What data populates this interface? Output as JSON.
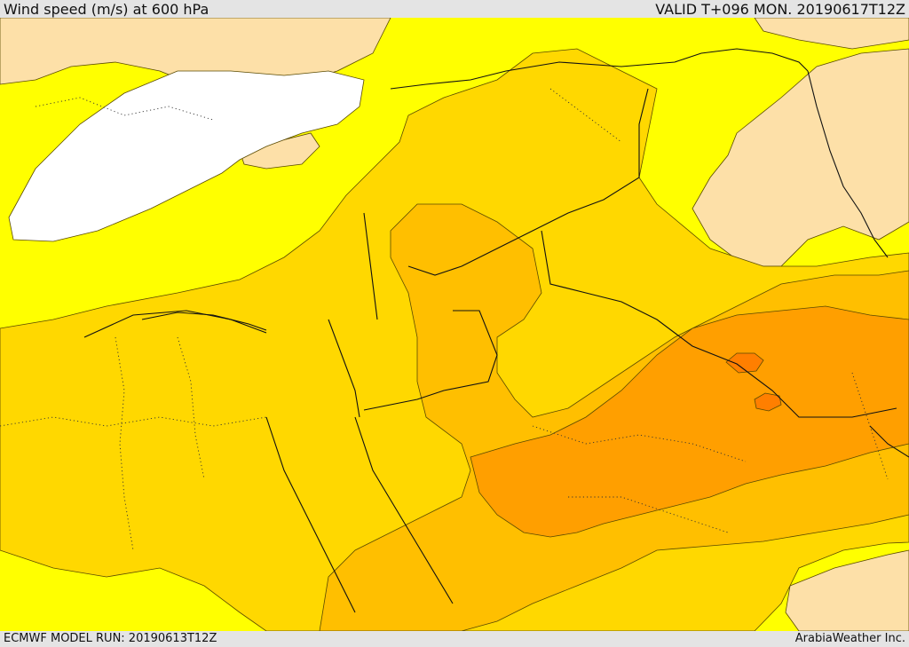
{
  "header": {
    "title": "Wind speed (m/s) at 600 hPa",
    "valid": "VALID T+096 MON. 20190617T12Z"
  },
  "footer": {
    "model_run": "ECMWF MODEL RUN: 20190613T12Z",
    "credit": "ArabiaWeather Inc."
  },
  "palette": {
    "below_10": "#fde0a8",
    "band_10_15": "#ffff00",
    "band_15_20": "#ffd800",
    "band_20_25": "#ffbf00",
    "band_25_30": "#ff9f00",
    "band_30_35": "#ff7f00",
    "sea_masked": "#ffffff"
  }
}
